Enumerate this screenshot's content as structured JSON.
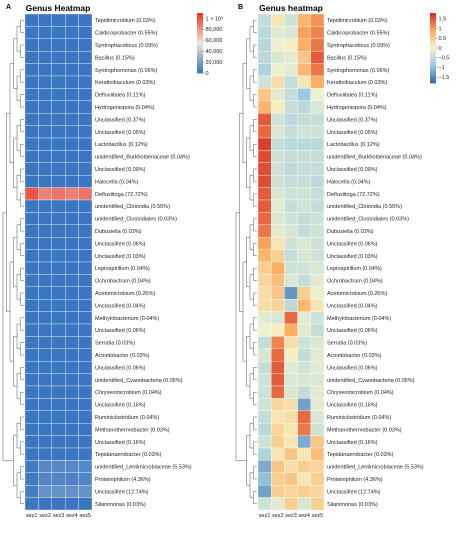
{
  "chart_data": [
    {
      "type": "heatmap",
      "panel": "A",
      "title": "Genus Heatmap",
      "columns": [
        "sez1",
        "sez2",
        "sez3",
        "sez4",
        "sez5"
      ],
      "rows": [
        "Tepidimicrobium (0.03%)",
        "Caldicoprobacter (0.55%)",
        "Syntrophaceticus (0.09%)",
        "Bacillus (0.15%)",
        "Syntrophomonas (0.06%)",
        "Keratinibaculum (0.03%)",
        "Defluviitalea (0.11%)",
        "Hydrogenispora (0.04%)",
        "Unclassified (0.37%)",
        "Unclassified (0.05%)",
        "Lactobacillus (0.12%)",
        "unidentified_Burkholderiaceae (0.04%)",
        "Unclassified (0.09%)",
        "Halocella (0.04%)",
        "Defluviitoga (72.72%)",
        "unidentified_Clostridia (0.55%)",
        "unidentified_Clostridiales (0.03%)",
        "Dubosiella (0.03%)",
        "Unclassified (0.06%)",
        "Unclassified (0.03%)",
        "Leptospirillum (0.04%)",
        "Ochrobactrum (0.04%)",
        "Acetomicrobium (0.26%)",
        "Unclassified (0.04%)",
        "Methylobacterium (0.04%)",
        "Unclassified (0.06%)",
        "Serratia (0.03%)",
        "Acinetobacter (0.03%)",
        "Unclassified (0.06%)",
        "unidentified_Cyanobacteria (0.05%)",
        "Chryseomicrobium (0.04%)",
        "Unclassified (0.16%)",
        "Ruminiclostridium (0.04%)",
        "Methanothermobacter (0.03%)",
        "Unclassified (0.16%)",
        "Tepidanaerobacter (0.03%)",
        "unidentified_Lentimicrobiaceae (5.53%)",
        "Proteiniphilum (4.36%)",
        "Unclassified (12.74%)",
        "Silanimonas (0.03%)"
      ],
      "legend": {
        "ticks": [
          "1 × 10⁵",
          "80,000",
          "60,000",
          "40,000",
          "20,000",
          "0"
        ],
        "tick_values": [
          100000,
          80000,
          60000,
          40000,
          20000,
          0
        ],
        "range": [
          0,
          110000
        ],
        "colors": [
          "#3a76c2",
          "#f0e8dc",
          "#e83424"
        ]
      },
      "values": {
        "default": [
          70,
          70,
          70,
          70,
          70
        ],
        "Defluviitoga (72.72%)": [
          100000,
          86000,
          90000,
          86000,
          90000
        ],
        "unidentified_Lentimicrobiaceae (5.53%)": [
          2500,
          9000,
          9000,
          9000,
          8000
        ],
        "Proteiniphilum (4.36%)": [
          2500,
          7000,
          7000,
          6000,
          7000
        ],
        "Unclassified (12.74%)": [
          3000,
          13000,
          13000,
          13000,
          13000
        ]
      }
    },
    {
      "type": "heatmap",
      "panel": "B",
      "title": "Genus heatmap",
      "columns": [
        "sez1",
        "sez2",
        "sez3",
        "sez4",
        "sez5"
      ],
      "rows": [
        "Tepidimicrobium (0.03%)",
        "Caldicoprobacter (0.55%)",
        "Syntrophaceticus (0.09%)",
        "Bacillus (0.15%)",
        "Syntrophomonas (0.06%)",
        "Keratinibaculum (0.03%)",
        "Defluviitalea (0.11%)",
        "Hydrogenispora (0.04%)",
        "Unclassified (0.37%)",
        "Unclassified (0.05%)",
        "Lactobacillus (0.12%)",
        "unidentified_Burkholderiaceae (0.04%)",
        "Unclassified (0.09%)",
        "Halocella (0.04%)",
        "Defluviitoga (72.72%)",
        "unidentified_Clostridia (0.55%)",
        "unidentified_Clostridiales (0.03%)",
        "Dubosiella (0.03%)",
        "Unclassified (0.06%)",
        "Unclassified (0.03%)",
        "Leptospirillum (0.04%)",
        "Ochrobactrum (0.04%)",
        "Acetomicrobium (0.26%)",
        "Unclassified (0.04%)",
        "Methylobacterium (0.04%)",
        "Unclassified (0.06%)",
        "Serratia (0.03%)",
        "Acinetobacter (0.03%)",
        "Unclassified (0.06%)",
        "unidentified_Cyanobacteria (0.05%)",
        "Chryseomicrobium (0.04%)",
        "Unclassified (0.16%)",
        "Ruminiclostridium (0.04%)",
        "Methanothermobacter (0.03%)",
        "Unclassified (0.16%)",
        "Tepidanaerobacter (0.03%)",
        "unidentified_Lentimicrobiaceae (5.53%)",
        "Proteiniphilum (4.36%)",
        "Unclassified (12.74%)",
        "Silanimonas (0.03%)"
      ],
      "legend": {
        "ticks": [
          "1.5",
          "1",
          "0.5",
          "0",
          "−0.5",
          "−1",
          "−1.5"
        ],
        "tick_values": [
          1.5,
          1,
          0.5,
          0,
          -0.5,
          -1,
          -1.5
        ],
        "range": [
          -1.8,
          1.8
        ],
        "colors": [
          "#3b6ea8",
          "#9ecae1",
          "#f5f5cc",
          "#fdae61",
          "#d73027"
        ]
      },
      "values": [
        [
          -0.5,
          0.2,
          -0.4,
          0.8,
          1.1
        ],
        [
          -0.6,
          -0.2,
          -0.3,
          1.0,
          1.2
        ],
        [
          -0.6,
          -0.1,
          0.1,
          0.9,
          1.3
        ],
        [
          -0.6,
          -0.3,
          -0.2,
          0.6,
          1.5
        ],
        [
          -0.7,
          -0.1,
          -0.2,
          0.8,
          1.3
        ],
        [
          -0.4,
          0.3,
          -0.5,
          0.2,
          0.9
        ],
        [
          0.6,
          -0.2,
          -0.5,
          -0.9,
          -0.1
        ],
        [
          0.8,
          0.1,
          -0.5,
          -0.6,
          -0.3
        ],
        [
          1.5,
          -0.4,
          -0.6,
          -0.5,
          -0.5
        ],
        [
          1.4,
          -0.3,
          -0.5,
          -0.4,
          -0.4
        ],
        [
          1.7,
          -0.5,
          -0.6,
          -0.6,
          -0.6
        ],
        [
          1.6,
          -0.4,
          -0.5,
          -0.5,
          -0.5
        ],
        [
          1.6,
          -0.4,
          -0.6,
          -0.5,
          -0.5
        ],
        [
          1.6,
          -0.4,
          -0.5,
          -0.5,
          -0.6
        ],
        [
          1.5,
          -0.3,
          -0.4,
          -0.4,
          -0.5
        ],
        [
          1.5,
          -0.2,
          -0.5,
          -0.4,
          -0.5
        ],
        [
          1.4,
          -0.3,
          -0.4,
          -0.5,
          -0.4
        ],
        [
          1.3,
          -0.2,
          -0.3,
          -0.5,
          -0.4
        ],
        [
          1.0,
          0.2,
          -0.4,
          -0.3,
          -0.4
        ],
        [
          0.8,
          0.5,
          -0.5,
          -0.3,
          -0.4
        ],
        [
          0.5,
          0.9,
          -0.4,
          -0.4,
          -0.3
        ],
        [
          0.4,
          0.7,
          -0.3,
          -0.5,
          -0.2
        ],
        [
          0.3,
          0.6,
          -1.4,
          0.5,
          -0.1
        ],
        [
          0.3,
          0.4,
          -0.6,
          0.8,
          0.2
        ],
        [
          -0.2,
          -0.3,
          1.4,
          -0.2,
          -0.4
        ],
        [
          -0.1,
          0.1,
          0.9,
          -0.2,
          -0.5
        ],
        [
          -0.5,
          1.2,
          0.3,
          -0.4,
          -0.3
        ],
        [
          -0.3,
          1.4,
          0.1,
          -0.5,
          -0.2
        ],
        [
          -0.5,
          1.5,
          -0.2,
          -0.4,
          -0.2
        ],
        [
          -0.4,
          1.5,
          -0.3,
          -0.3,
          -0.3
        ],
        [
          -0.4,
          1.4,
          -0.3,
          -0.5,
          -0.2
        ],
        [
          -0.4,
          0.4,
          0.3,
          -1.3,
          -0.2
        ],
        [
          -0.5,
          0.2,
          0.3,
          1.4,
          -0.3
        ],
        [
          -0.6,
          0.4,
          0.2,
          1.3,
          -0.4
        ],
        [
          -0.4,
          0.5,
          0.2,
          -1.2,
          0.6
        ],
        [
          -0.7,
          0.2,
          0.6,
          0.2,
          0.7
        ],
        [
          -1.2,
          0.6,
          0.3,
          0.5,
          0.4
        ],
        [
          -1.0,
          0.5,
          0.6,
          0.2,
          0.5
        ],
        [
          -1.3,
          0.5,
          0.4,
          0.5,
          0.4
        ],
        [
          -0.4,
          -0.2,
          0.5,
          -0.3,
          0.5
        ]
      ]
    }
  ]
}
